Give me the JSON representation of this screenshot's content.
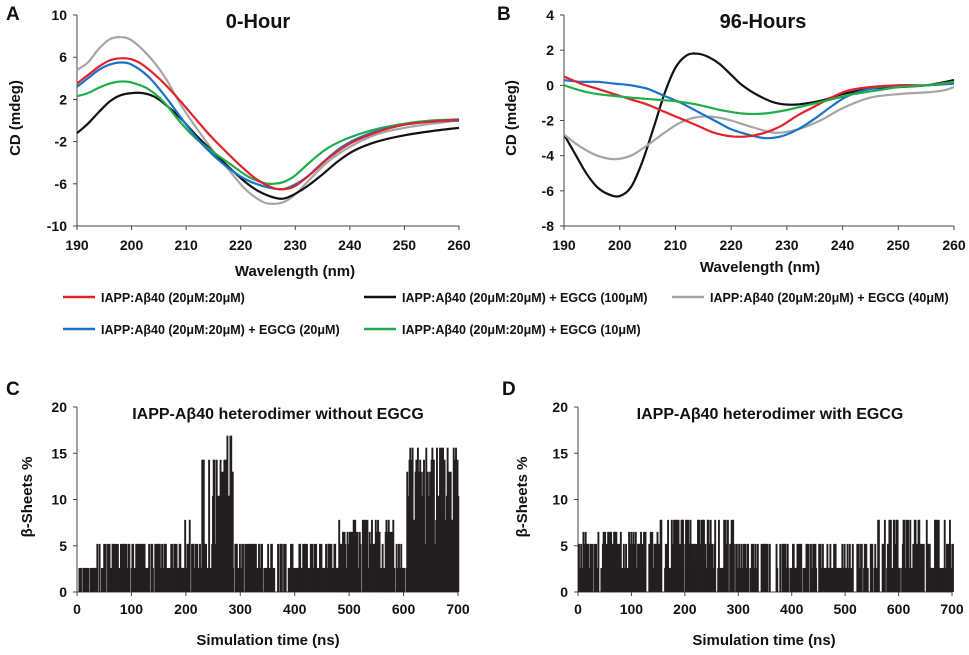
{
  "chart_data": [
    {
      "id": "A",
      "type": "line",
      "panel_letter": "A",
      "title": "0-Hour",
      "xlabel": "Wavelength (nm)",
      "ylabel": "CD (mdeg)",
      "xlim": [
        190,
        260
      ],
      "ylim": [
        -10,
        10
      ],
      "xticks": [
        190,
        200,
        210,
        220,
        230,
        240,
        250,
        260
      ],
      "yticks": [
        -10,
        -6,
        -2,
        2,
        6,
        10
      ],
      "series": [
        {
          "name": "IAPP:Aβ40 (20μM:20μM) + EGCG (40μM)",
          "color": "#a6a6a6",
          "x": [
            190,
            192,
            194,
            196,
            198,
            200,
            203,
            206,
            209,
            212,
            215,
            218,
            221,
            224,
            226,
            228,
            230,
            233,
            236,
            240,
            245,
            250,
            255,
            260
          ],
          "y": [
            4.8,
            5.5,
            6.8,
            7.7,
            7.9,
            7.6,
            6.2,
            4.2,
            1.5,
            -0.8,
            -2.9,
            -4.8,
            -6.6,
            -7.7,
            -7.9,
            -7.7,
            -7.0,
            -5.4,
            -3.9,
            -2.5,
            -1.3,
            -0.7,
            -0.3,
            0.0
          ]
        },
        {
          "name": "IAPP:Aβ40 (20μM:20μM) + EGCG (100μM)",
          "color": "#111111",
          "x": [
            190,
            192,
            194,
            196,
            198,
            200,
            202,
            204,
            206,
            209,
            212,
            215,
            218,
            221,
            224,
            227,
            229,
            232,
            235,
            238,
            241,
            245,
            250,
            255,
            260
          ],
          "y": [
            -1.2,
            -0.3,
            0.8,
            1.8,
            2.4,
            2.6,
            2.6,
            2.3,
            1.6,
            0.2,
            -1.5,
            -3.0,
            -4.5,
            -5.9,
            -6.9,
            -7.4,
            -7.2,
            -6.3,
            -5.1,
            -3.8,
            -2.8,
            -2.0,
            -1.4,
            -1.0,
            -0.7
          ]
        },
        {
          "name": "IAPP:Aβ40 (20μM:20μM) + EGCG (10μM)",
          "color": "#1fad4a",
          "x": [
            190,
            192,
            194,
            196,
            198,
            200,
            203,
            206,
            209,
            212,
            215,
            218,
            221,
            224,
            226,
            228,
            230,
            233,
            236,
            240,
            245,
            250,
            255,
            260
          ],
          "y": [
            2.3,
            2.6,
            3.1,
            3.5,
            3.7,
            3.6,
            3.0,
            1.7,
            -0.2,
            -1.8,
            -3.0,
            -4.1,
            -5.2,
            -5.9,
            -6.0,
            -5.8,
            -5.2,
            -3.8,
            -2.6,
            -1.6,
            -0.8,
            -0.3,
            0.0,
            0.1
          ]
        },
        {
          "name": "IAPP:Aβ40 (20μM:20μM) + EGCG (20μM)",
          "color": "#1a73c6",
          "x": [
            190,
            192,
            194,
            196,
            198,
            200,
            203,
            206,
            209,
            212,
            215,
            218,
            221,
            224,
            227,
            229,
            232,
            235,
            238,
            241,
            245,
            250,
            255,
            260
          ],
          "y": [
            3.2,
            4.0,
            4.8,
            5.3,
            5.5,
            5.3,
            4.2,
            2.4,
            0.3,
            -1.7,
            -3.3,
            -4.6,
            -5.6,
            -6.2,
            -6.5,
            -6.3,
            -5.4,
            -4.0,
            -2.7,
            -1.8,
            -1.0,
            -0.4,
            -0.1,
            0.0
          ]
        },
        {
          "name": "IAPP:Aβ40 (20μM:20μM)",
          "color": "#e0232b",
          "x": [
            190,
            192,
            194,
            196,
            198,
            200,
            202,
            205,
            208,
            211,
            214,
            217,
            220,
            223,
            226,
            228,
            230,
            233,
            236,
            240,
            245,
            250,
            255,
            260
          ],
          "y": [
            3.5,
            4.3,
            5.1,
            5.7,
            5.9,
            5.8,
            5.3,
            4.0,
            2.4,
            0.6,
            -1.2,
            -2.8,
            -4.3,
            -5.6,
            -6.4,
            -6.5,
            -6.2,
            -5.0,
            -3.6,
            -2.2,
            -1.1,
            -0.4,
            -0.1,
            0.1
          ]
        }
      ]
    },
    {
      "id": "B",
      "type": "line",
      "panel_letter": "B",
      "title": "96-Hours",
      "xlabel": "Wavelength (nm)",
      "ylabel": "CD (mdeg)",
      "xlim": [
        190,
        260
      ],
      "ylim": [
        -8,
        4
      ],
      "xticks": [
        190,
        200,
        210,
        220,
        230,
        240,
        250,
        260
      ],
      "yticks": [
        -8,
        -6,
        -4,
        -2,
        0,
        2,
        4
      ],
      "series": [
        {
          "name": "IAPP:Aβ40 (20μM:20μM) + EGCG (100μM)",
          "color": "#111111",
          "x": [
            190,
            192,
            194,
            196,
            198,
            200,
            202,
            204,
            206,
            208,
            210,
            212,
            214,
            216,
            218,
            220,
            222,
            225,
            228,
            231,
            234,
            237,
            240,
            245,
            250,
            255,
            260
          ],
          "y": [
            -2.8,
            -3.9,
            -5.0,
            -5.8,
            -6.2,
            -6.3,
            -5.8,
            -4.4,
            -2.5,
            -0.5,
            1.0,
            1.7,
            1.8,
            1.6,
            1.2,
            0.6,
            0.0,
            -0.6,
            -1.0,
            -1.1,
            -1.0,
            -0.8,
            -0.5,
            -0.2,
            -0.1,
            0.0,
            0.3
          ]
        },
        {
          "name": "IAPP:Aβ40 (20μM:20μM) + EGCG (40μM)",
          "color": "#a6a6a6",
          "x": [
            190,
            193,
            196,
            199,
            202,
            205,
            208,
            211,
            214,
            217,
            220,
            224,
            228,
            232,
            236,
            240,
            245,
            250,
            255,
            258,
            260
          ],
          "y": [
            -2.8,
            -3.5,
            -4.0,
            -4.2,
            -4.0,
            -3.4,
            -2.7,
            -2.1,
            -1.8,
            -1.8,
            -2.0,
            -2.4,
            -2.7,
            -2.5,
            -2.0,
            -1.3,
            -0.7,
            -0.5,
            -0.4,
            -0.3,
            -0.1
          ]
        },
        {
          "name": "IAPP:Aβ40 (20μM:20μM) + EGCG (20μM)",
          "color": "#1a73c6",
          "x": [
            190,
            193,
            196,
            199,
            202,
            205,
            208,
            211,
            214,
            217,
            220,
            223,
            226,
            229,
            232,
            235,
            238,
            241,
            245,
            250,
            255,
            260
          ],
          "y": [
            0.3,
            0.2,
            0.2,
            0.1,
            0.0,
            -0.2,
            -0.6,
            -1.0,
            -1.5,
            -2.0,
            -2.5,
            -2.8,
            -3.0,
            -2.9,
            -2.5,
            -1.9,
            -1.2,
            -0.6,
            -0.2,
            0.0,
            0.0,
            0.1
          ]
        },
        {
          "name": "IAPP:Aβ40 (20μM:20μM)",
          "color": "#e0232b",
          "x": [
            190,
            193,
            196,
            199,
            202,
            205,
            208,
            211,
            214,
            217,
            220,
            223,
            226,
            229,
            232,
            235,
            238,
            241,
            245,
            250,
            255,
            260
          ],
          "y": [
            0.5,
            0.1,
            -0.2,
            -0.5,
            -0.8,
            -1.1,
            -1.5,
            -1.9,
            -2.3,
            -2.7,
            -2.9,
            -2.9,
            -2.7,
            -2.3,
            -1.7,
            -1.2,
            -0.7,
            -0.3,
            -0.1,
            0.0,
            0.0,
            0.2
          ]
        },
        {
          "name": "IAPP:Aβ40 (20μM:20μM) + EGCG (10μM)",
          "color": "#1fad4a",
          "x": [
            190,
            193,
            196,
            199,
            202,
            206,
            210,
            214,
            218,
            222,
            226,
            230,
            234,
            238,
            242,
            246,
            250,
            255,
            260
          ],
          "y": [
            0.0,
            -0.3,
            -0.5,
            -0.6,
            -0.7,
            -0.8,
            -0.9,
            -1.1,
            -1.4,
            -1.6,
            -1.6,
            -1.4,
            -1.1,
            -0.8,
            -0.5,
            -0.3,
            -0.1,
            0.0,
            0.2
          ]
        }
      ]
    },
    {
      "id": "C",
      "type": "bar",
      "panel_letter": "C",
      "title": "IAPP-Aβ40 heterodimer without EGCG",
      "xlabel": "Simulation time (ns)",
      "ylabel": "β-Sheets %",
      "xlim": [
        0,
        700
      ],
      "ylim": [
        0,
        20
      ],
      "xticks": [
        0,
        100,
        200,
        300,
        400,
        500,
        600,
        700
      ],
      "yticks": [
        0,
        5,
        10,
        15,
        20
      ],
      "segments": [
        {
          "x": [
            0,
            30
          ],
          "levels": [
            0,
            2.6
          ]
        },
        {
          "x": [
            30,
            190
          ],
          "levels": [
            0,
            2.6,
            5.2
          ]
        },
        {
          "x": [
            190,
            220
          ],
          "levels": [
            0,
            2.6,
            5.2,
            7.8
          ]
        },
        {
          "x": [
            220,
            248
          ],
          "levels": [
            2.6,
            5.2,
            14.3
          ]
        },
        {
          "x": [
            248,
            285
          ],
          "levels": [
            5.2,
            10.4,
            13.0,
            14.3,
            16.9
          ]
        },
        {
          "x": [
            285,
            355
          ],
          "levels": [
            0,
            2.6,
            5.2
          ]
        },
        {
          "x": [
            355,
            480
          ],
          "levels": [
            0,
            2.6,
            5.2
          ]
        },
        {
          "x": [
            480,
            580
          ],
          "levels": [
            0,
            2.6,
            5.2,
            6.5,
            7.8
          ]
        },
        {
          "x": [
            580,
            605
          ],
          "levels": [
            0,
            2.6,
            5.2
          ]
        },
        {
          "x": [
            605,
            700
          ],
          "levels": [
            5.2,
            7.8,
            10.4,
            13.0,
            14.3,
            15.6
          ]
        }
      ]
    },
    {
      "id": "D",
      "type": "bar",
      "panel_letter": "D",
      "title": "IAPP-Aβ40 heterodimer with EGCG",
      "xlabel": "Simulation time (ns)",
      "ylabel": "β-Sheets %",
      "xlim": [
        0,
        700
      ],
      "ylim": [
        0,
        20
      ],
      "xticks": [
        0,
        100,
        200,
        300,
        400,
        500,
        600,
        700
      ],
      "yticks": [
        0,
        5,
        10,
        15,
        20
      ],
      "segments": [
        {
          "x": [
            0,
            150
          ],
          "levels": [
            0,
            2.6,
            5.2,
            6.5
          ]
        },
        {
          "x": [
            150,
            290
          ],
          "levels": [
            0,
            2.6,
            5.2,
            7.8
          ]
        },
        {
          "x": [
            290,
            560
          ],
          "levels": [
            0,
            2.6,
            5.2
          ]
        },
        {
          "x": [
            560,
            700
          ],
          "levels": [
            0,
            2.6,
            5.2,
            7.8
          ]
        }
      ]
    }
  ],
  "legend": [
    {
      "label": "IAPP:Aβ40 (20μM:20μM)",
      "color": "#e0232b"
    },
    {
      "label": "IAPP:Aβ40 (20μM:20μM) + EGCG (100μM)",
      "color": "#111111"
    },
    {
      "label": "IAPP:Aβ40 (20μM:20μM) + EGCG (40μM)",
      "color": "#a6a6a6"
    },
    {
      "label": "IAPP:Aβ40 (20μM:20μM) + EGCG (20μM)",
      "color": "#1a73c6"
    },
    {
      "label": "IAPP:Aβ40 (20μM:20μM) + EGCG (10μM)",
      "color": "#1fad4a"
    }
  ]
}
